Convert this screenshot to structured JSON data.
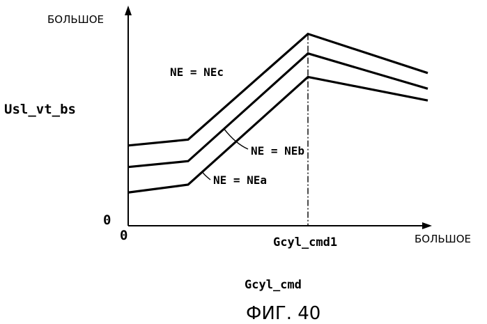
{
  "chart_data": {
    "type": "line",
    "title": "",
    "xlabel": "Gcyl_cmd",
    "ylabel": "Usl_vt_bs",
    "x_axis_end_label": "БОЛЬШОЕ",
    "y_axis_end_label": "БОЛЬШОЕ",
    "x_origin_label": "0",
    "y_origin_label": "0",
    "x_marker": {
      "label": "Gcyl_cmd1",
      "x": 0.6
    },
    "xlim": [
      0,
      1
    ],
    "ylim": [
      0,
      1
    ],
    "grid": false,
    "legend": "none",
    "series": [
      {
        "name": "NE = NEc",
        "x": [
          0,
          0.2,
          0.6,
          1.0
        ],
        "y": [
          0.41,
          0.44,
          0.98,
          0.78
        ]
      },
      {
        "name": "NE = NEb",
        "x": [
          0,
          0.2,
          0.6,
          1.0
        ],
        "y": [
          0.3,
          0.33,
          0.88,
          0.7
        ]
      },
      {
        "name": "NE = NEa",
        "x": [
          0,
          0.2,
          0.6,
          1.0
        ],
        "y": [
          0.17,
          0.21,
          0.76,
          0.64
        ]
      }
    ]
  },
  "caption": "ФИГ. 40"
}
